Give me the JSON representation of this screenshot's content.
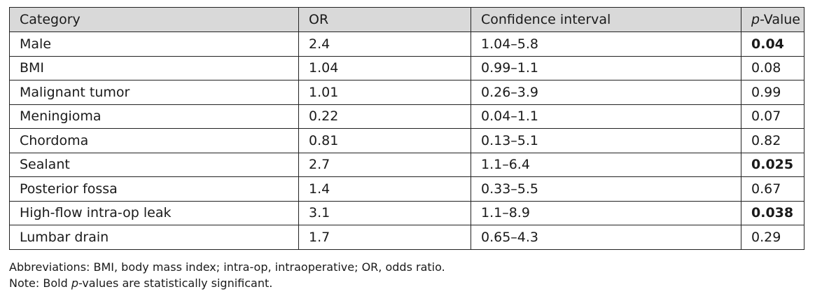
{
  "table": {
    "headers": {
      "category": "Category",
      "or": "OR",
      "ci": "Confidence interval",
      "p_italic": "p",
      "p_rest": "-Value"
    },
    "rows": [
      {
        "category": "Male",
        "or": "2.4",
        "ci": "1.04–5.8",
        "p": "0.04",
        "significant": true
      },
      {
        "category": "BMI",
        "or": "1.04",
        "ci": "0.99–1.1",
        "p": "0.08",
        "significant": false
      },
      {
        "category": "Malignant tumor",
        "or": "1.01",
        "ci": "0.26–3.9",
        "p": "0.99",
        "significant": false
      },
      {
        "category": "Meningioma",
        "or": "0.22",
        "ci": "0.04–1.1",
        "p": "0.07",
        "significant": false
      },
      {
        "category": "Chordoma",
        "or": "0.81",
        "ci": "0.13–5.1",
        "p": "0.82",
        "significant": false
      },
      {
        "category": "Sealant",
        "or": "2.7",
        "ci": "1.1–6.4",
        "p": "0.025",
        "significant": true
      },
      {
        "category": "Posterior fossa",
        "or": "1.4",
        "ci": "0.33–5.5",
        "p": "0.67",
        "significant": false
      },
      {
        "category": "High-flow intra-op leak",
        "or": "3.1",
        "ci": "1.1–8.9",
        "p": "0.038",
        "significant": true
      },
      {
        "category": "Lumbar drain",
        "or": "1.7",
        "ci": "0.65–4.3",
        "p": "0.29",
        "significant": false
      }
    ]
  },
  "notes": {
    "abbreviations": "Abbreviations: BMI, body mass index; intra-op, intraoperative; OR, odds ratio.",
    "note_prefix": "Note: Bold ",
    "note_italic": "p",
    "note_suffix": "-values are statistically significant."
  },
  "colors": {
    "header_bg": "#d9d9d9",
    "border": "#222222"
  }
}
